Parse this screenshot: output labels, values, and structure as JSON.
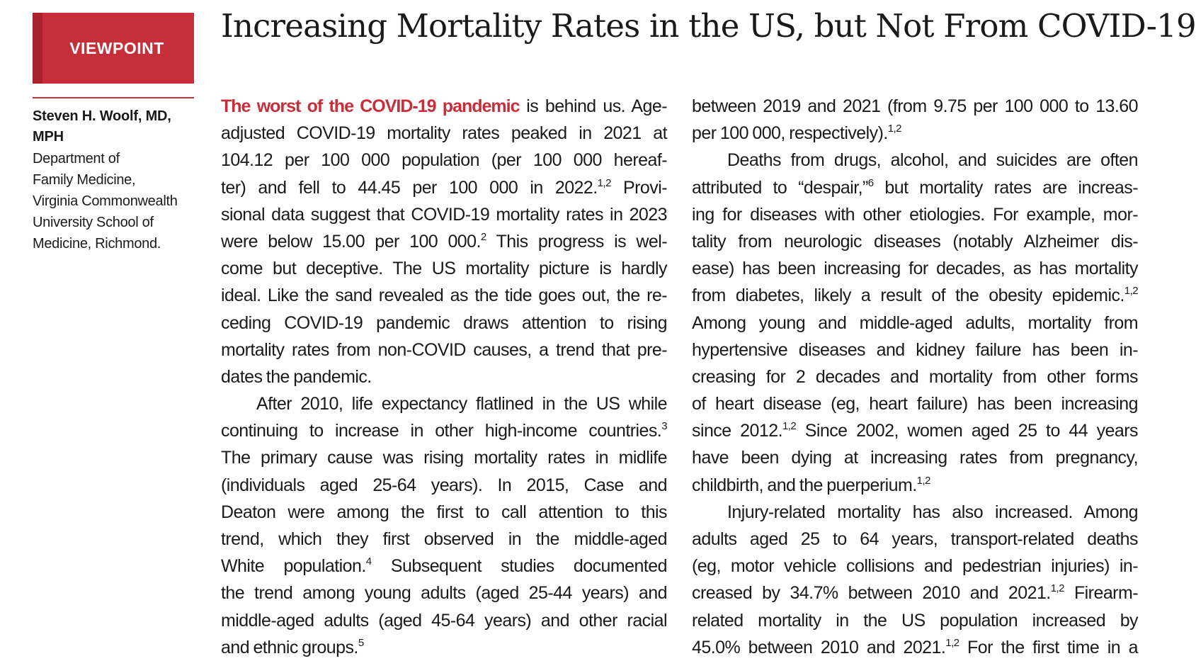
{
  "section_badge": "VIEWPOINT",
  "title": "Increasing Mortality Rates in the US, but Not From COVID-19",
  "author": {
    "name_line1": "Steven H. Woolf, MD,",
    "name_line2": "MPH",
    "affiliation_lines": [
      "Department of",
      "Family Medicine,",
      "Virginia Commonwealth",
      "University School of",
      "Medicine, Richmond."
    ]
  },
  "left_column": {
    "lead": "The worst of the COVID-19 pandemic",
    "lines": [
      {
        "text": " is behind us. Age-"
      },
      {
        "text": "adjusted COVID-19 mortality rates peaked in 2021 at"
      },
      {
        "text": "104.12 per 100 000 population (per 100 000 hereaf-"
      },
      {
        "text": "ter) and fell to 44.45 per 100 000 in 2022.",
        "sup": "1,2",
        "after": " Provi-"
      },
      {
        "text": "sional data suggest that COVID-19 mortality rates in 2023"
      },
      {
        "text": "were below 15.00 per 100 000.",
        "sup": "2",
        "after": " This progress is wel-"
      },
      {
        "text": "come but deceptive. The US mortality picture is hardly"
      },
      {
        "text": "ideal. Like the sand revealed as the tide goes out, the re-"
      },
      {
        "text": "ceding COVID-19 pandemic draws attention to rising"
      },
      {
        "text": "mortality rates from non-COVID causes, a trend that pre-"
      },
      {
        "text": "dates the pandemic."
      },
      {
        "text": "After 2010, life expectancy flatlined in the US while"
      },
      {
        "text": "continuing to increase in other high-income countries.",
        "sup": "3"
      },
      {
        "text": "The primary cause was rising mortality rates in midlife"
      },
      {
        "text": "(individuals aged 25-64 years). In 2015, Case and"
      },
      {
        "text": "Deaton were among the first to call attention to this"
      },
      {
        "text": "trend, which they first observed in the middle-aged"
      },
      {
        "text": "White population.",
        "sup": "4",
        "after": " Subsequent studies documented"
      },
      {
        "text": "the trend among young adults (aged 25-44 years) and"
      },
      {
        "text": "middle-aged adults (aged 45-64 years) and other racial"
      },
      {
        "text": "and ethnic groups.",
        "sup": "5"
      }
    ]
  },
  "right_column": {
    "lines": [
      {
        "text": "between 2019 and 2021 (from 9.75 per 100 000 to 13.60"
      },
      {
        "text": "per 100 000, respectively).",
        "sup": "1,2"
      },
      {
        "text": "Deaths from drugs, alcohol, and suicides are often"
      },
      {
        "text": "attributed to “despair,”",
        "sup": "6",
        "after": " but mortality rates are increas-"
      },
      {
        "text": "ing for diseases with other etiologies. For example, mor-"
      },
      {
        "text": "tality from neurologic diseases (notably Alzheimer dis-"
      },
      {
        "text": "ease) has been increasing for decades, as has mortality"
      },
      {
        "text": "from diabetes, likely a result of the obesity epidemic.",
        "sup": "1,2"
      },
      {
        "text": "Among young and middle-aged adults, mortality from"
      },
      {
        "text": "hypertensive diseases and kidney failure has been in-"
      },
      {
        "text": "creasing for 2 decades and mortality from other forms"
      },
      {
        "text": "of heart disease (eg, heart failure) has been increasing"
      },
      {
        "text": "since 2012.",
        "sup": "1,2",
        "after": " Since 2002, women aged 25 to 44 years"
      },
      {
        "text": "have been dying at increasing rates from pregnancy,"
      },
      {
        "text": "childbirth, and the puerperium.",
        "sup": "1,2"
      },
      {
        "text": "Injury-related mortality has also increased. Among"
      },
      {
        "text": "adults aged 25 to 64 years, transport-related deaths"
      },
      {
        "text": "(eg, motor vehicle collisions and pedestrian injuries) in-"
      },
      {
        "text": "creased by 34.7% between 2010 and 2021.",
        "sup": "1,2",
        "after": " Firearm-"
      },
      {
        "text": "related mortality in the US population increased by"
      },
      {
        "text": "45.0% between 2010 and 2021.",
        "sup": "1,2",
        "after": " For the first time in a"
      }
    ]
  }
}
